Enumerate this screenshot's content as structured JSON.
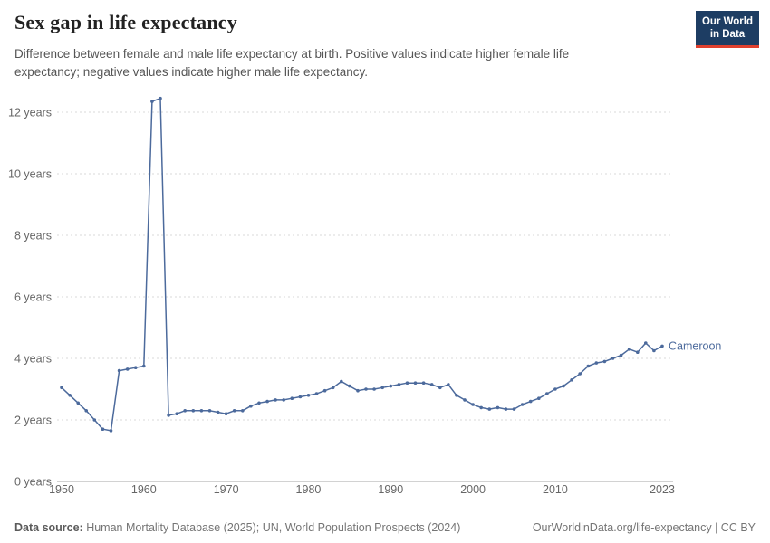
{
  "header": {
    "title": "Sex gap in life expectancy",
    "subtitle": "Difference between female and male life expectancy at birth. Positive values indicate higher female life expectancy; negative values indicate higher male life expectancy."
  },
  "logo": {
    "line1": "Our World",
    "line2": "in Data",
    "bg_color": "#1d3d63",
    "accent_color": "#e0402e"
  },
  "chart_data": {
    "type": "line",
    "title": "Sex gap in life expectancy",
    "xlabel": "",
    "ylabel": "years",
    "ylim": [
      0,
      12
    ],
    "yticks": [
      0,
      2,
      4,
      6,
      8,
      10,
      12
    ],
    "ytick_suffix": " years",
    "xticks": [
      1950,
      1960,
      1970,
      1980,
      1990,
      2000,
      2010,
      2023
    ],
    "grid": "horizontal-dashed",
    "legend_position": "end-of-line-label",
    "x": [
      1950,
      1951,
      1952,
      1953,
      1954,
      1955,
      1956,
      1957,
      1958,
      1959,
      1960,
      1961,
      1962,
      1963,
      1964,
      1965,
      1966,
      1967,
      1968,
      1969,
      1970,
      1971,
      1972,
      1973,
      1974,
      1975,
      1976,
      1977,
      1978,
      1979,
      1980,
      1981,
      1982,
      1983,
      1984,
      1985,
      1986,
      1987,
      1988,
      1989,
      1990,
      1991,
      1992,
      1993,
      1994,
      1995,
      1996,
      1997,
      1998,
      1999,
      2000,
      2001,
      2002,
      2003,
      2004,
      2005,
      2006,
      2007,
      2008,
      2009,
      2010,
      2011,
      2012,
      2013,
      2014,
      2015,
      2016,
      2017,
      2018,
      2019,
      2020,
      2021,
      2022,
      2023
    ],
    "series": [
      {
        "name": "Cameroon",
        "color": "#4c6a9c",
        "values": [
          3.05,
          2.8,
          2.55,
          2.3,
          2.0,
          1.7,
          1.65,
          3.6,
          3.65,
          3.7,
          3.75,
          12.35,
          12.45,
          2.15,
          2.2,
          2.3,
          2.3,
          2.3,
          2.3,
          2.25,
          2.2,
          2.3,
          2.3,
          2.45,
          2.55,
          2.6,
          2.65,
          2.65,
          2.7,
          2.75,
          2.8,
          2.85,
          2.95,
          3.05,
          3.25,
          3.1,
          2.95,
          3.0,
          3.0,
          3.05,
          3.1,
          3.15,
          3.2,
          3.2,
          3.2,
          3.15,
          3.05,
          3.15,
          2.8,
          2.65,
          2.5,
          2.4,
          2.35,
          2.4,
          2.35,
          2.35,
          2.5,
          2.6,
          2.7,
          2.85,
          3.0,
          3.1,
          3.3,
          3.5,
          3.75,
          3.85,
          3.9,
          4.0,
          4.1,
          4.3,
          4.2,
          4.5,
          4.25,
          4.4
        ]
      }
    ]
  },
  "footer": {
    "source_label": "Data source:",
    "source_text": " Human Mortality Database (2025); UN, World Population Prospects (2024)",
    "credit": "OurWorldinData.org/life-expectancy | CC BY"
  }
}
